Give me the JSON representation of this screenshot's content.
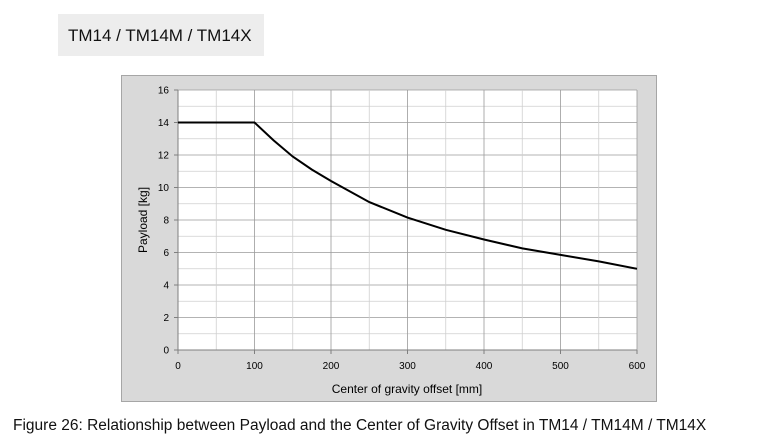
{
  "header": {
    "title": "TM14 / TM14M / TM14X"
  },
  "caption": "Figure 26: Relationship between Payload and the Center of Gravity Offset in TM14 / TM14M / TM14X",
  "chart_data": {
    "type": "line",
    "title": "",
    "xlabel": "Center of gravity offset [mm]",
    "ylabel": "Payload [kg]",
    "xlim": [
      0,
      600
    ],
    "ylim": [
      0,
      16
    ],
    "xticks": [
      0,
      100,
      200,
      300,
      400,
      500,
      600
    ],
    "yticks": [
      0,
      2,
      4,
      6,
      8,
      10,
      12,
      14,
      16
    ],
    "grid": true,
    "legend": "none",
    "series": [
      {
        "x": [
          0,
          100,
          125,
          150,
          175,
          200,
          250,
          300,
          350,
          400,
          450,
          500,
          550,
          600
        ],
        "values": [
          14,
          14,
          12.9,
          11.9,
          11.1,
          10.4,
          9.1,
          8.15,
          7.4,
          6.8,
          6.25,
          5.85,
          5.45,
          5.0
        ]
      }
    ]
  }
}
